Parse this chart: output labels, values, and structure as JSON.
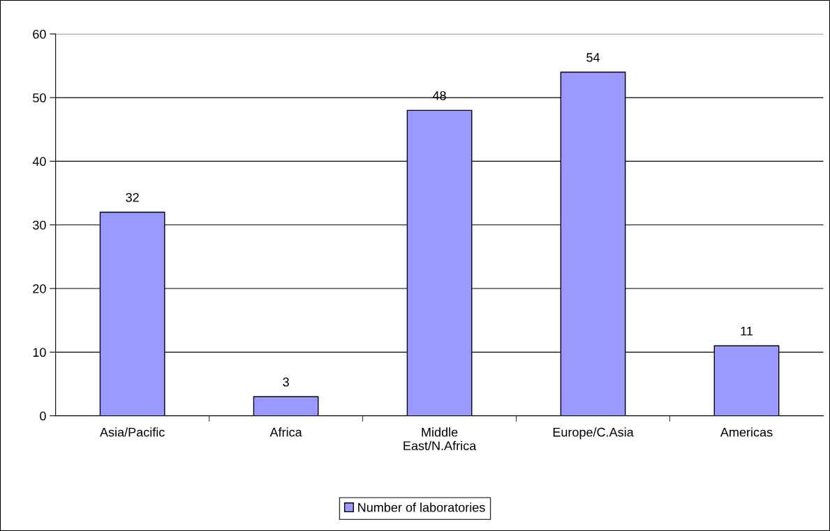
{
  "chart_data": {
    "type": "bar",
    "categories": [
      "Asia/Pacific",
      "Africa",
      "Middle\nEast/N.Africa",
      "Europe/C.Asia",
      "Americas"
    ],
    "series": [
      {
        "name": "Number of laboratories",
        "color": "#9999ff",
        "values": [
          32,
          3,
          48,
          54,
          11
        ]
      }
    ],
    "ylim": [
      0,
      60
    ],
    "yticks": [
      0,
      10,
      20,
      30,
      40,
      50,
      60
    ],
    "grid": "y",
    "legend": "bottom",
    "data_labels": true
  }
}
